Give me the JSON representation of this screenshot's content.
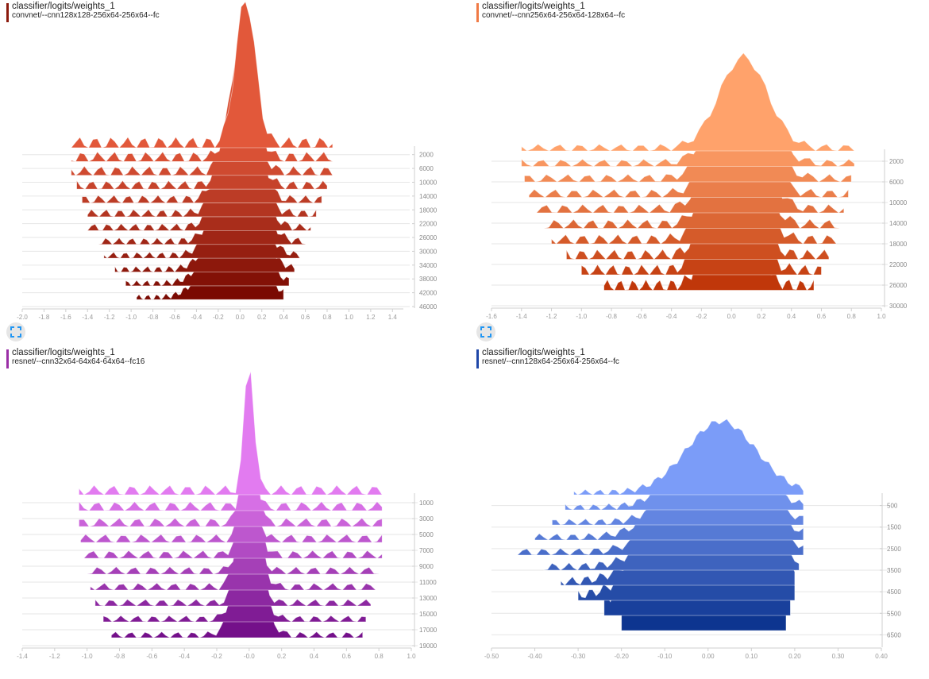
{
  "cards": [
    {
      "title": "classifier/logits/weights_1",
      "run": "convnet/--cnn128x128-256x64-256x64--fc",
      "accent": "#8b1a0d",
      "expand_icon": "expand-icon"
    },
    {
      "title": "classifier/logits/weights_1",
      "run": "convnet/--cnn256x64-256x64-128x64--fc",
      "accent": "#f07a45",
      "expand_icon": "expand-icon"
    },
    {
      "title": "classifier/logits/weights_1",
      "run": "resnet/--cnn32x64-64x64-64x64--fc16",
      "accent": "#9a2ea6",
      "expand_icon": "expand-icon"
    },
    {
      "title": "classifier/logits/weights_1",
      "run": "resnet/--cnn128x64-256x64-256x64--fc",
      "accent": "#1f47a8",
      "expand_icon": "expand-icon"
    }
  ],
  "chart_data": [
    {
      "type": "histogram-offset",
      "title": "classifier/logits/weights_1",
      "subtitle": "convnet/--cnn128x128-256x64-256x64--fc",
      "xlim": [
        -2.0,
        1.5
      ],
      "xticks": [
        "-2.0",
        "-1.8",
        "-1.6",
        "-1.4",
        "-1.2",
        "-1.0",
        "-0.8",
        "-0.6",
        "-0.4",
        "-0.2",
        "0.0",
        "0.2",
        "0.4",
        "0.6",
        "0.8",
        "1.0",
        "1.2",
        "1.4"
      ],
      "ylim": [
        0,
        46000
      ],
      "yticks": [
        "2000",
        "6000",
        "10000",
        "14000",
        "18000",
        "22000",
        "26000",
        "30000",
        "34000",
        "38000",
        "42000",
        "46000"
      ],
      "color_back": "#7a0a02",
      "color_front": "#e2583a",
      "series": [
        {
          "step": 0,
          "center": 0.05,
          "spread": 0.09,
          "xmin": -1.55,
          "xmax": 0.85,
          "peak": 1.0
        },
        {
          "step": 4000,
          "center": 0.03,
          "spread": 0.1,
          "xmin": -1.55,
          "xmax": 0.85,
          "peak": 0.92
        },
        {
          "step": 8000,
          "center": 0.02,
          "spread": 0.11,
          "xmin": -1.55,
          "xmax": 0.85,
          "peak": 0.86
        },
        {
          "step": 12000,
          "center": 0.01,
          "spread": 0.12,
          "xmin": -1.5,
          "xmax": 0.8,
          "peak": 0.8
        },
        {
          "step": 16000,
          "center": 0.0,
          "spread": 0.14,
          "xmin": -1.45,
          "xmax": 0.75,
          "peak": 0.74
        },
        {
          "step": 20000,
          "center": 0.0,
          "spread": 0.15,
          "xmin": -1.4,
          "xmax": 0.7,
          "peak": 0.7
        },
        {
          "step": 24000,
          "center": 0.0,
          "spread": 0.16,
          "xmin": -1.4,
          "xmax": 0.65,
          "peak": 0.66
        },
        {
          "step": 28000,
          "center": 0.0,
          "spread": 0.17,
          "xmin": -1.3,
          "xmax": 0.6,
          "peak": 0.62
        },
        {
          "step": 32000,
          "center": -0.02,
          "spread": 0.18,
          "xmin": -1.25,
          "xmax": 0.55,
          "peak": 0.58
        },
        {
          "step": 36000,
          "center": -0.03,
          "spread": 0.19,
          "xmin": -1.15,
          "xmax": 0.5,
          "peak": 0.55
        },
        {
          "step": 40000,
          "center": -0.05,
          "spread": 0.2,
          "xmin": -1.05,
          "xmax": 0.45,
          "peak": 0.52
        },
        {
          "step": 44000,
          "center": -0.07,
          "spread": 0.21,
          "xmin": -0.95,
          "xmax": 0.4,
          "peak": 0.48
        }
      ]
    },
    {
      "type": "histogram-offset",
      "title": "classifier/logits/weights_1",
      "subtitle": "convnet/--cnn256x64-256x64-128x64--fc",
      "xlim": [
        -1.6,
        1.0
      ],
      "xticks": [
        "-1.6",
        "-1.4",
        "-1.2",
        "-1.0",
        "-0.8",
        "-0.6",
        "-0.4",
        "-0.2",
        "0.0",
        "0.2",
        "0.4",
        "0.6",
        "0.8",
        "1.0"
      ],
      "ylim": [
        0,
        30000
      ],
      "yticks": [
        "2000",
        "6000",
        "10000",
        "14000",
        "18000",
        "22000",
        "26000",
        "30000"
      ],
      "color_back": "#c0370a",
      "color_front": "#ffa26b",
      "series": [
        {
          "step": 0,
          "center": 0.08,
          "spread": 0.16,
          "xmin": -1.4,
          "xmax": 0.82,
          "peak": 0.62
        },
        {
          "step": 3000,
          "center": 0.07,
          "spread": 0.16,
          "xmin": -1.4,
          "xmax": 0.82,
          "peak": 0.66
        },
        {
          "step": 6000,
          "center": 0.06,
          "spread": 0.16,
          "xmin": -1.38,
          "xmax": 0.8,
          "peak": 0.7
        },
        {
          "step": 9000,
          "center": 0.05,
          "spread": 0.15,
          "xmin": -1.35,
          "xmax": 0.78,
          "peak": 0.74
        },
        {
          "step": 12000,
          "center": 0.04,
          "spread": 0.15,
          "xmin": -1.3,
          "xmax": 0.75,
          "peak": 0.78
        },
        {
          "step": 15000,
          "center": 0.03,
          "spread": 0.14,
          "xmin": -1.25,
          "xmax": 0.72,
          "peak": 0.82
        },
        {
          "step": 18000,
          "center": 0.02,
          "spread": 0.14,
          "xmin": -1.2,
          "xmax": 0.7,
          "peak": 0.86
        },
        {
          "step": 21000,
          "center": 0.01,
          "spread": 0.13,
          "xmin": -1.1,
          "xmax": 0.65,
          "peak": 0.9
        },
        {
          "step": 24000,
          "center": 0.0,
          "spread": 0.13,
          "xmin": -1.0,
          "xmax": 0.6,
          "peak": 0.94
        },
        {
          "step": 27000,
          "center": 0.0,
          "spread": 0.12,
          "xmin": -0.85,
          "xmax": 0.55,
          "peak": 0.98
        }
      ]
    },
    {
      "type": "histogram-offset",
      "title": "classifier/logits/weights_1",
      "subtitle": "resnet/--cnn32x64-64x64-64x64--fc16",
      "xlim": [
        -1.4,
        1.0
      ],
      "xticks": [
        "-1.4",
        "-1.2",
        "-1.0",
        "-0.8",
        "-0.6",
        "-0.4",
        "-0.2",
        "-0.0",
        "0.2",
        "0.4",
        "0.6",
        "0.8",
        "1.0"
      ],
      "ylim": [
        0,
        19000
      ],
      "yticks": [
        "1000",
        "3000",
        "5000",
        "7000",
        "9000",
        "11000",
        "13000",
        "15000",
        "17000",
        "19000"
      ],
      "color_back": "#74108a",
      "color_front": "#e27bf0",
      "series": [
        {
          "step": 0,
          "center": 0.0,
          "spread": 0.03,
          "xmin": -1.05,
          "xmax": 0.82,
          "peak": 1.0
        },
        {
          "step": 2000,
          "center": 0.0,
          "spread": 0.03,
          "xmin": -1.05,
          "xmax": 0.82,
          "peak": 0.95
        },
        {
          "step": 4000,
          "center": 0.0,
          "spread": 0.04,
          "xmin": -1.05,
          "xmax": 0.82,
          "peak": 0.9
        },
        {
          "step": 6000,
          "center": 0.0,
          "spread": 0.04,
          "xmin": -1.04,
          "xmax": 0.82,
          "peak": 0.86
        },
        {
          "step": 8000,
          "center": 0.0,
          "spread": 0.05,
          "xmin": -1.02,
          "xmax": 0.82,
          "peak": 0.82
        },
        {
          "step": 10000,
          "center": 0.0,
          "spread": 0.05,
          "xmin": -1.0,
          "xmax": 0.8,
          "peak": 0.78
        },
        {
          "step": 12000,
          "center": 0.0,
          "spread": 0.06,
          "xmin": -0.98,
          "xmax": 0.78,
          "peak": 0.74
        },
        {
          "step": 14000,
          "center": 0.0,
          "spread": 0.06,
          "xmin": -0.95,
          "xmax": 0.75,
          "peak": 0.7
        },
        {
          "step": 16000,
          "center": 0.0,
          "spread": 0.07,
          "xmin": -0.9,
          "xmax": 0.72,
          "peak": 0.66
        },
        {
          "step": 18000,
          "center": 0.0,
          "spread": 0.08,
          "xmin": -0.85,
          "xmax": 0.7,
          "peak": 0.62
        }
      ]
    },
    {
      "type": "histogram-offset",
      "title": "classifier/logits/weights_1",
      "subtitle": "resnet/--cnn128x64-256x64-256x64--fc",
      "xlim": [
        -0.5,
        0.4
      ],
      "xticks": [
        "-0.50",
        "-0.40",
        "-0.30",
        "-0.20",
        "-0.10",
        "0.00",
        "0.10",
        "0.20",
        "0.30",
        "0.40"
      ],
      "ylim": [
        0,
        7000
      ],
      "yticks": [
        "500",
        "1500",
        "2500",
        "3500",
        "4500",
        "5500",
        "6500"
      ],
      "color_back": "#0d3590",
      "color_front": "#7b9cf8",
      "series": [
        {
          "step": 0,
          "center": 0.03,
          "spread": 0.08,
          "xmin": -0.31,
          "xmax": 0.22,
          "peak": 0.55
        },
        {
          "step": 700,
          "center": 0.02,
          "spread": 0.08,
          "xmin": -0.33,
          "xmax": 0.22,
          "peak": 0.6
        },
        {
          "step": 1400,
          "center": 0.02,
          "spread": 0.08,
          "xmin": -0.36,
          "xmax": 0.22,
          "peak": 0.64
        },
        {
          "step": 2100,
          "center": 0.01,
          "spread": 0.09,
          "xmin": -0.4,
          "xmax": 0.22,
          "peak": 0.68
        },
        {
          "step": 2800,
          "center": 0.01,
          "spread": 0.09,
          "xmin": -0.44,
          "xmax": 0.22,
          "peak": 0.72
        },
        {
          "step": 3500,
          "center": 0.0,
          "spread": 0.09,
          "xmin": -0.38,
          "xmax": 0.21,
          "peak": 0.76
        },
        {
          "step": 4200,
          "center": 0.0,
          "spread": 0.1,
          "xmin": -0.34,
          "xmax": 0.2,
          "peak": 0.82
        },
        {
          "step": 4900,
          "center": -0.01,
          "spread": 0.1,
          "xmin": -0.3,
          "xmax": 0.2,
          "peak": 0.88
        },
        {
          "step": 5600,
          "center": -0.02,
          "spread": 0.1,
          "xmin": -0.24,
          "xmax": 0.19,
          "peak": 0.94
        },
        {
          "step": 6300,
          "center": -0.02,
          "spread": 0.11,
          "xmin": -0.2,
          "xmax": 0.18,
          "peak": 1.0
        }
      ]
    }
  ]
}
